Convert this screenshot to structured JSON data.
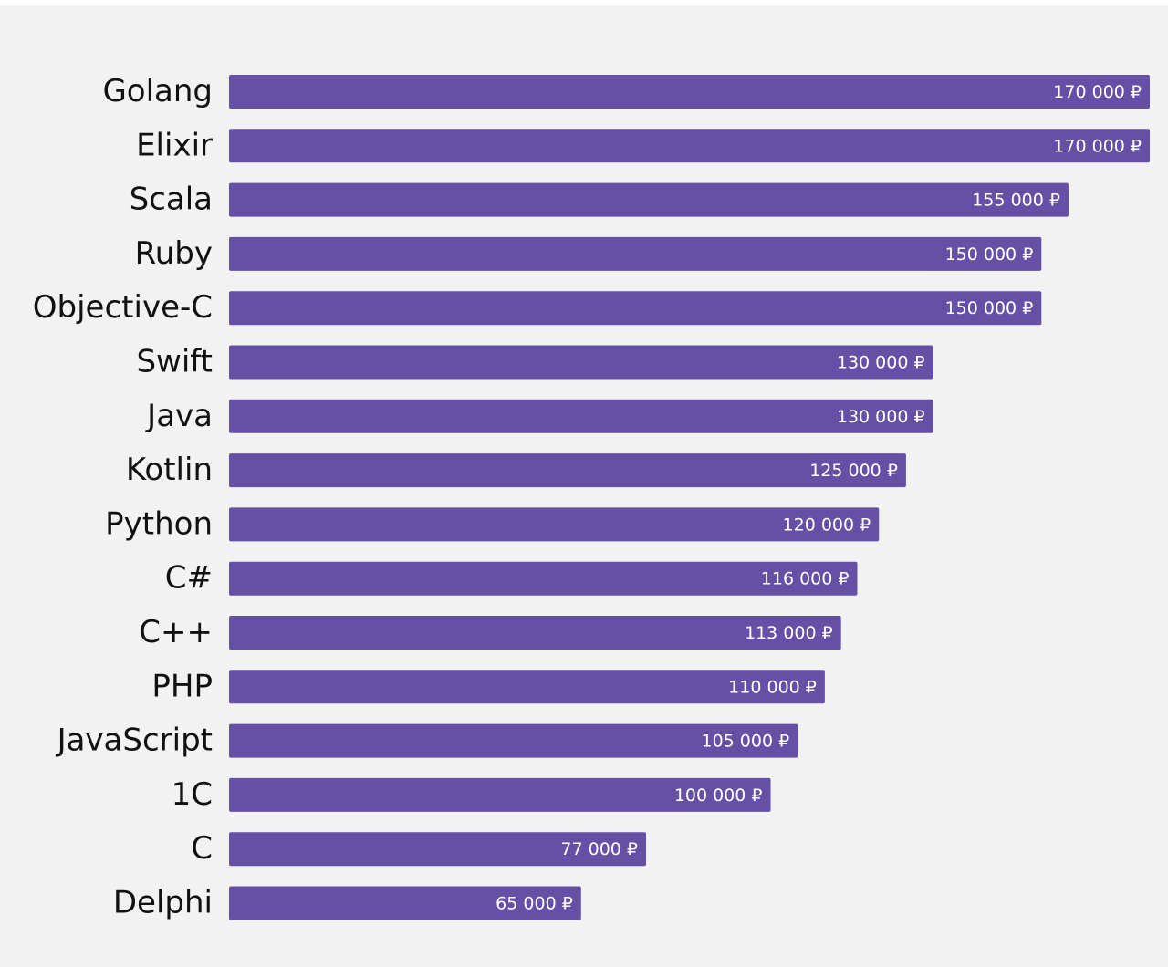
{
  "chart_data": {
    "type": "bar",
    "orientation": "horizontal",
    "categories": [
      "Golang",
      "Elixir",
      "Scala",
      "Ruby",
      "Objective-C",
      "Swift",
      "Java",
      "Kotlin",
      "Python",
      "C#",
      "C++",
      "PHP",
      "JavaScript",
      "1C",
      "C",
      "Delphi"
    ],
    "values": [
      170000,
      170000,
      155000,
      150000,
      150000,
      130000,
      130000,
      125000,
      120000,
      116000,
      113000,
      110000,
      105000,
      100000,
      77000,
      65000
    ],
    "value_labels": [
      "170 000 ₽",
      "170 000 ₽",
      "155 000 ₽",
      "150 000 ₽",
      "150 000 ₽",
      "130 000 ₽",
      "130 000 ₽",
      "125 000 ₽",
      "120 000 ₽",
      "116 000 ₽",
      "113 000 ₽",
      "110 000 ₽",
      "105 000 ₽",
      "100 000 ₽",
      "77 000 ₽",
      "65 000 ₽"
    ],
    "xlim": [
      0,
      170000
    ],
    "title": "",
    "xlabel": "",
    "ylabel": "",
    "grid": false,
    "bar_color": "#6650a6",
    "background_color": "#f2f2f2"
  }
}
